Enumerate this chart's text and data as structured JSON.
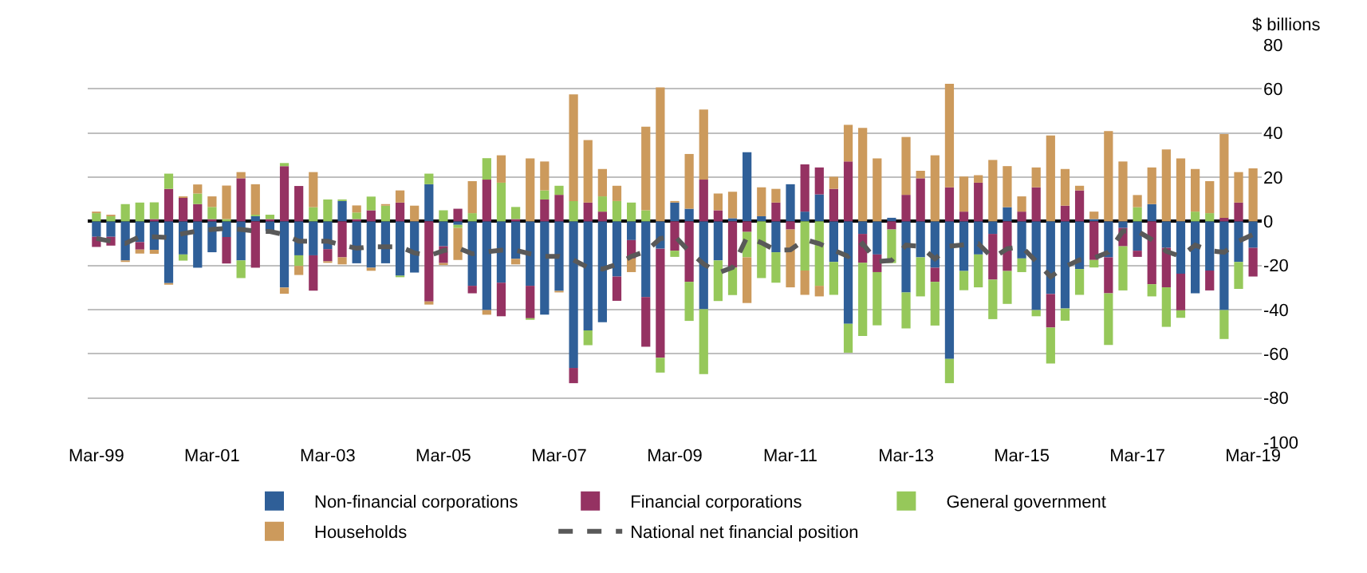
{
  "chart_data": {
    "type": "bar",
    "stacked": true,
    "ylabel": "$ billions",
    "categories": [
      "Mar-99",
      null,
      null,
      null,
      null,
      null,
      null,
      null,
      "Mar-01",
      null,
      null,
      null,
      null,
      null,
      null,
      null,
      "Mar-03",
      null,
      null,
      null,
      null,
      null,
      null,
      null,
      "Mar-05",
      null,
      null,
      null,
      null,
      null,
      null,
      null,
      "Mar-07",
      null,
      null,
      null,
      null,
      null,
      null,
      null,
      "Mar-09",
      null,
      null,
      null,
      null,
      null,
      null,
      null,
      "Mar-11",
      null,
      null,
      null,
      null,
      null,
      null,
      null,
      "Mar-13",
      null,
      null,
      null,
      null,
      null,
      null,
      null,
      "Mar-15",
      null,
      null,
      null,
      null,
      null,
      null,
      null,
      "Mar-17",
      null,
      null,
      null,
      null,
      null,
      null,
      null,
      "Mar-19"
    ],
    "series": [
      {
        "name": "Non-financial corporations",
        "color": "#2f5f98",
        "values": [
          -7,
          -7,
          -17.7,
          -9.4,
          -12.9,
          -28,
          -15,
          -21,
          -14,
          -7.1,
          -17.7,
          2.3,
          -4.4,
          -30,
          -15.4,
          -15.4,
          -12.6,
          9.2,
          -19,
          -21,
          -19,
          -24.6,
          -23.2,
          16.8,
          -11.3,
          -1.6,
          -29.2,
          -40.2,
          -27.8,
          -17,
          -29.2,
          -42.3,
          -31.5,
          -66.4,
          -49.4,
          -45.7,
          -25,
          -8.5,
          -34.3,
          -12.4,
          8.5,
          5.7,
          -39.8,
          -17.7,
          1.4,
          31.3,
          2.3,
          -14,
          16.8,
          4.4,
          12.2,
          -18.4,
          -46.4,
          -5.7,
          -15,
          1.6,
          -32.2,
          -16.3,
          -21,
          -62.3,
          -22.5,
          -15,
          -5.7,
          6.4,
          -16.8,
          -40.2,
          -32.9,
          -39.5,
          -21.6,
          1,
          -16.3,
          -3,
          -13.3,
          7.8,
          -12,
          -23.7,
          -32.6,
          -22.3,
          -40.2,
          -18.4,
          -12
        ]
      },
      {
        "name": "Financial corporations",
        "color": "#953262",
        "values": [
          -4.6,
          -4,
          0,
          -3.4,
          1,
          14.7,
          10.6,
          7.8,
          1,
          -12,
          19.5,
          -21,
          1,
          25,
          16,
          -16,
          -5.5,
          -16.3,
          1,
          5,
          0,
          8.5,
          0,
          -36.3,
          -7.6,
          5.7,
          -3.4,
          18.9,
          -15.2,
          1,
          -14.7,
          9.9,
          12,
          -6.9,
          8.5,
          4.4,
          -11,
          -8.3,
          -22.5,
          -49.4,
          -13.3,
          -27.4,
          18.9,
          5,
          -21,
          -4.8,
          0,
          8.5,
          -3.7,
          21.4,
          12.2,
          14.7,
          27.1,
          -13.1,
          -8,
          -3.7,
          12,
          19.5,
          -6.4,
          15.4,
          4.4,
          17.5,
          -20.7,
          -22.5,
          4.4,
          15.4,
          -15.2,
          7.1,
          14,
          -17.5,
          -16.3,
          -8.3,
          -2.8,
          -28.5,
          -17.9,
          -16.6,
          0,
          -9,
          1.6,
          8.5,
          -13
        ]
      },
      {
        "name": "General government",
        "color": "#96c85a",
        "values": [
          3.7,
          2.3,
          7.8,
          8.5,
          7.6,
          6.9,
          -2.8,
          4.8,
          5.5,
          1,
          -8,
          0.7,
          2,
          1.4,
          -4.8,
          6.4,
          9.9,
          0.7,
          3,
          6.2,
          7.1,
          -0.7,
          0,
          4.8,
          5,
          -1.4,
          3.7,
          9.7,
          17.5,
          5.5,
          -0.7,
          4.1,
          4.1,
          9.2,
          -6.7,
          6.9,
          9.2,
          8.5,
          5,
          -6.7,
          -2.8,
          -17.7,
          -29.4,
          -18.4,
          -12.4,
          -11.5,
          -25.7,
          -13.8,
          0,
          -22.3,
          -29.2,
          -14.9,
          -13.1,
          -33.1,
          -24.1,
          -15.2,
          -16.3,
          -17.7,
          -19.8,
          -11,
          -8.7,
          -14.9,
          -17.9,
          -14.9,
          -6.2,
          -2.8,
          -16.3,
          -5.5,
          -11.7,
          -3.4,
          -23.4,
          -20,
          6.4,
          -5.5,
          -17.9,
          -3.4,
          4.4,
          3.7,
          -13.1,
          -12.2,
          0
        ]
      },
      {
        "name": "Households",
        "color": "#cc9a5c",
        "values": [
          0.7,
          0.7,
          -0.7,
          -1.8,
          -1.8,
          -0.7,
          0.7,
          4.1,
          4.8,
          15.2,
          2.8,
          13.8,
          null,
          -2.8,
          -4.1,
          15.9,
          -0.7,
          -3.2,
          3.2,
          -1.4,
          0.7,
          5.5,
          7.1,
          -1.4,
          -0.9,
          -14.5,
          14.5,
          -2.1,
          12.4,
          -2.5,
          28.5,
          13.1,
          -0.7,
          48.3,
          28.3,
          12.4,
          6.9,
          -6.2,
          37.9,
          60.7,
          0.7,
          24.8,
          31.7,
          7.6,
          12,
          -20.7,
          13.1,
          6.2,
          -26.2,
          -11,
          -4.8,
          5.5,
          16.6,
          42.3,
          28.5,
          0,
          26.2,
          3.4,
          29.9,
          46.9,
          15.9,
          3.4,
          27.8,
          18.6,
          6.9,
          9,
          38.9,
          16.6,
          2.1,
          3.4,
          40.9,
          27.1,
          5.5,
          16.6,
          32.6,
          28.5,
          19.3,
          14.5,
          37.9,
          13.8,
          24
        ]
      },
      {
        "name": "National net financial position",
        "type": "line",
        "color": "#595959",
        "values": [
          -7.8,
          -9,
          -10,
          -7,
          -7,
          -7.4,
          -5.5,
          -4.4,
          -3.7,
          -3.2,
          -3.7,
          -4.4,
          -4.6,
          -6,
          -9,
          -9,
          -9,
          -10.8,
          -12.2,
          -11.5,
          -11.5,
          -11.5,
          -14.3,
          -15.6,
          -13.3,
          -12,
          -14.7,
          -13.8,
          -13.1,
          -13.1,
          -14.7,
          -15.9,
          -15.9,
          -17.5,
          -20.9,
          -21.6,
          -19.5,
          -15.9,
          -13.6,
          -7.8,
          -6.7,
          -13.6,
          -19.3,
          -23.4,
          -20.9,
          -7.1,
          -9.7,
          -13.1,
          -12.9,
          -8.3,
          -10.1,
          -13.1,
          -15.9,
          -10.1,
          -18.2,
          -17.7,
          -10.8,
          -11.3,
          -17,
          -11.3,
          -10.6,
          -10.1,
          -16.6,
          -12.4,
          -11.5,
          -18.2,
          -25.1,
          -20.5,
          -17.5,
          -16.6,
          -14,
          -4.4,
          -4.4,
          -8.3,
          -13.6,
          -15.9,
          -10.8,
          -13.3,
          -14,
          -9,
          -6
        ]
      }
    ],
    "ylim": [
      -100,
      80
    ],
    "yticks": [
      -100,
      -80,
      -60,
      -40,
      -20,
      0,
      20,
      40,
      60,
      80
    ],
    "grid": "y",
    "legend": "bottom",
    "marker": "none",
    "line_style": "dashed"
  }
}
